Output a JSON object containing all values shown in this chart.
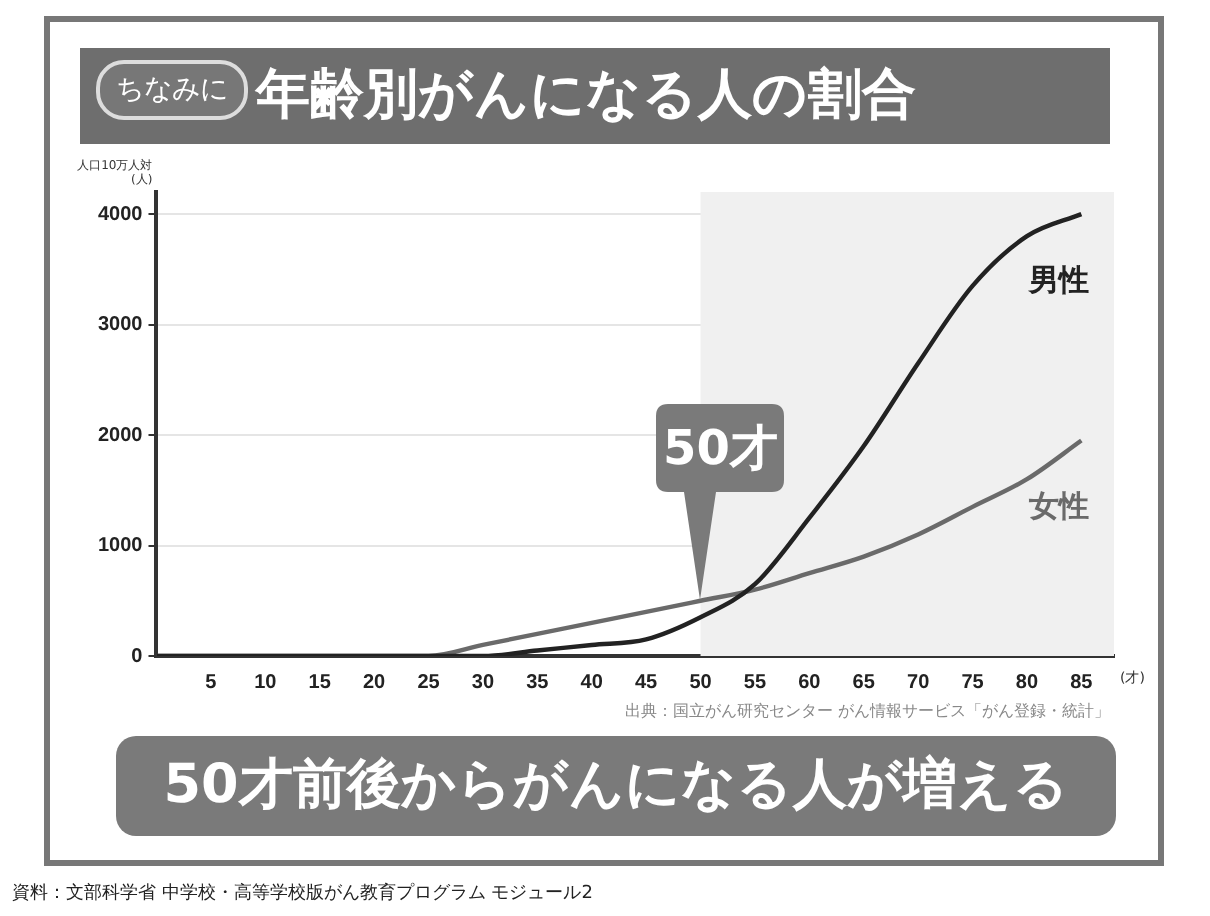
{
  "chart_data": {
    "type": "line",
    "title": "年齢別がんになる人の割合",
    "subtitle": "ちなみに",
    "ylabel": "人口10万人対\n(人)",
    "xlabel": "(才)",
    "x": [
      0,
      5,
      10,
      15,
      20,
      25,
      30,
      35,
      40,
      45,
      50,
      55,
      60,
      65,
      70,
      75,
      80,
      85
    ],
    "series": [
      {
        "name": "男性",
        "color": "#222222",
        "values": [
          0,
          0,
          0,
          0,
          0,
          0,
          0,
          50,
          100,
          150,
          350,
          650,
          1250,
          1900,
          2650,
          3350,
          3800,
          4000
        ]
      },
      {
        "name": "女性",
        "color": "#6a6a6a",
        "values": [
          0,
          0,
          0,
          0,
          0,
          0,
          100,
          200,
          300,
          400,
          500,
          600,
          750,
          900,
          1100,
          1350,
          1600,
          1950
        ]
      }
    ],
    "xlim": [
      0,
      88
    ],
    "xticks": [
      5,
      10,
      15,
      20,
      25,
      30,
      35,
      40,
      45,
      50,
      55,
      60,
      65,
      70,
      75,
      80,
      85
    ],
    "ylim": [
      0,
      4200
    ],
    "yticks": [
      0,
      1000,
      2000,
      3000,
      4000
    ],
    "grid": "y",
    "legend": false,
    "marker": "none",
    "line_style": "solid",
    "bands": [
      {
        "axis": "x",
        "from": 50,
        "to": 88,
        "label": null,
        "color": "#f0f0f0"
      }
    ],
    "annotations": [
      "出典：国立がん研究センター がん情報サービス「がん登録・統計」",
      {
        "text": "50才",
        "x": 50,
        "y": 500
      },
      "50才前後からがんになる人が増える",
      "資料：文部科学省 中学校・高等学校版がん教育プログラム モジュール2"
    ]
  }
}
